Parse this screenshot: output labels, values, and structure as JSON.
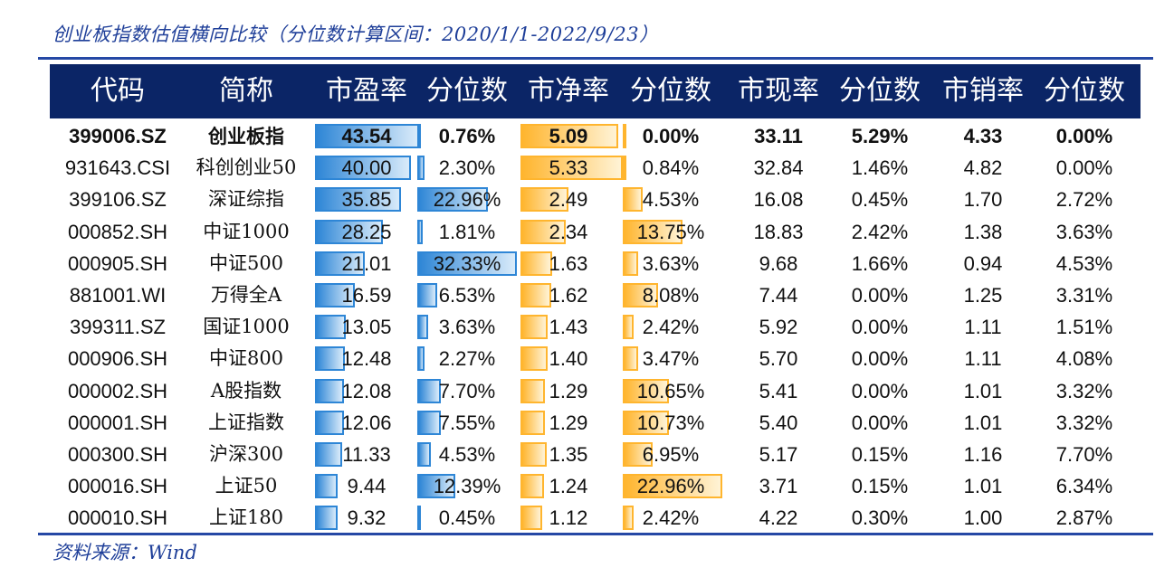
{
  "title": "创业板指数估值横向比较（分位数计算区间：2020/1/1-2022/9/23）",
  "source": "资料来源：Wind",
  "colors": {
    "header_bg": "#0b2566",
    "pe_bar": "#2e86d6",
    "pb_bar": "#ffb52e",
    "text_blue": "#1f3f99"
  },
  "columns": [
    "代码",
    "简称",
    "市盈率",
    "分位数",
    "市净率",
    "分位数",
    "市现率",
    "分位数",
    "市销率",
    "分位数"
  ],
  "rows": [
    {
      "code": "399006.SZ",
      "name": "创业板指",
      "pe": "43.54",
      "pe_pct": "0.76%",
      "pb": "5.09",
      "pb_pct": "0.00%",
      "pc": "33.11",
      "pc_pct": "5.29%",
      "ps": "4.33",
      "ps_pct": "0.00%"
    },
    {
      "code": "931643.CSI",
      "name": "科创创业50",
      "pe": "40.00",
      "pe_pct": "2.30%",
      "pb": "5.33",
      "pb_pct": "0.84%",
      "pc": "32.84",
      "pc_pct": "1.46%",
      "ps": "4.82",
      "ps_pct": "0.00%"
    },
    {
      "code": "399106.SZ",
      "name": "深证综指",
      "pe": "35.85",
      "pe_pct": "22.96%",
      "pb": "2.49",
      "pb_pct": "4.53%",
      "pc": "16.08",
      "pc_pct": "0.45%",
      "ps": "1.70",
      "ps_pct": "2.72%"
    },
    {
      "code": "000852.SH",
      "name": "中证1000",
      "pe": "28.25",
      "pe_pct": "1.81%",
      "pb": "2.34",
      "pb_pct": "13.75%",
      "pc": "18.83",
      "pc_pct": "2.42%",
      "ps": "1.38",
      "ps_pct": "3.63%"
    },
    {
      "code": "000905.SH",
      "name": "中证500",
      "pe": "21.01",
      "pe_pct": "32.33%",
      "pb": "1.63",
      "pb_pct": "3.63%",
      "pc": "9.68",
      "pc_pct": "1.66%",
      "ps": "0.94",
      "ps_pct": "4.53%"
    },
    {
      "code": "881001.WI",
      "name": "万得全A",
      "pe": "16.59",
      "pe_pct": "6.53%",
      "pb": "1.62",
      "pb_pct": "8.08%",
      "pc": "7.44",
      "pc_pct": "0.00%",
      "ps": "1.25",
      "ps_pct": "3.31%"
    },
    {
      "code": "399311.SZ",
      "name": "国证1000",
      "pe": "13.05",
      "pe_pct": "3.63%",
      "pb": "1.43",
      "pb_pct": "2.42%",
      "pc": "5.92",
      "pc_pct": "0.00%",
      "ps": "1.11",
      "ps_pct": "1.51%"
    },
    {
      "code": "000906.SH",
      "name": "中证800",
      "pe": "12.48",
      "pe_pct": "2.27%",
      "pb": "1.40",
      "pb_pct": "3.47%",
      "pc": "5.70",
      "pc_pct": "0.00%",
      "ps": "1.11",
      "ps_pct": "4.08%"
    },
    {
      "code": "000002.SH",
      "name": "A股指数",
      "pe": "12.08",
      "pe_pct": "7.70%",
      "pb": "1.29",
      "pb_pct": "10.65%",
      "pc": "5.41",
      "pc_pct": "0.00%",
      "ps": "1.01",
      "ps_pct": "3.32%"
    },
    {
      "code": "000001.SH",
      "name": "上证指数",
      "pe": "12.06",
      "pe_pct": "7.55%",
      "pb": "1.29",
      "pb_pct": "10.73%",
      "pc": "5.40",
      "pc_pct": "0.00%",
      "ps": "1.01",
      "ps_pct": "3.32%"
    },
    {
      "code": "000300.SH",
      "name": "沪深300",
      "pe": "11.33",
      "pe_pct": "4.53%",
      "pb": "1.35",
      "pb_pct": "6.95%",
      "pc": "5.17",
      "pc_pct": "0.15%",
      "ps": "1.16",
      "ps_pct": "7.70%"
    },
    {
      "code": "000016.SH",
      "name": "上证50",
      "pe": "9.44",
      "pe_pct": "12.39%",
      "pb": "1.24",
      "pb_pct": "22.96%",
      "pc": "3.71",
      "pc_pct": "0.15%",
      "ps": "1.01",
      "ps_pct": "6.34%"
    },
    {
      "code": "000010.SH",
      "name": "上证180",
      "pe": "9.32",
      "pe_pct": "0.45%",
      "pb": "1.12",
      "pb_pct": "2.42%",
      "pc": "4.22",
      "pc_pct": "0.30%",
      "ps": "1.00",
      "ps_pct": "2.87%"
    }
  ]
}
